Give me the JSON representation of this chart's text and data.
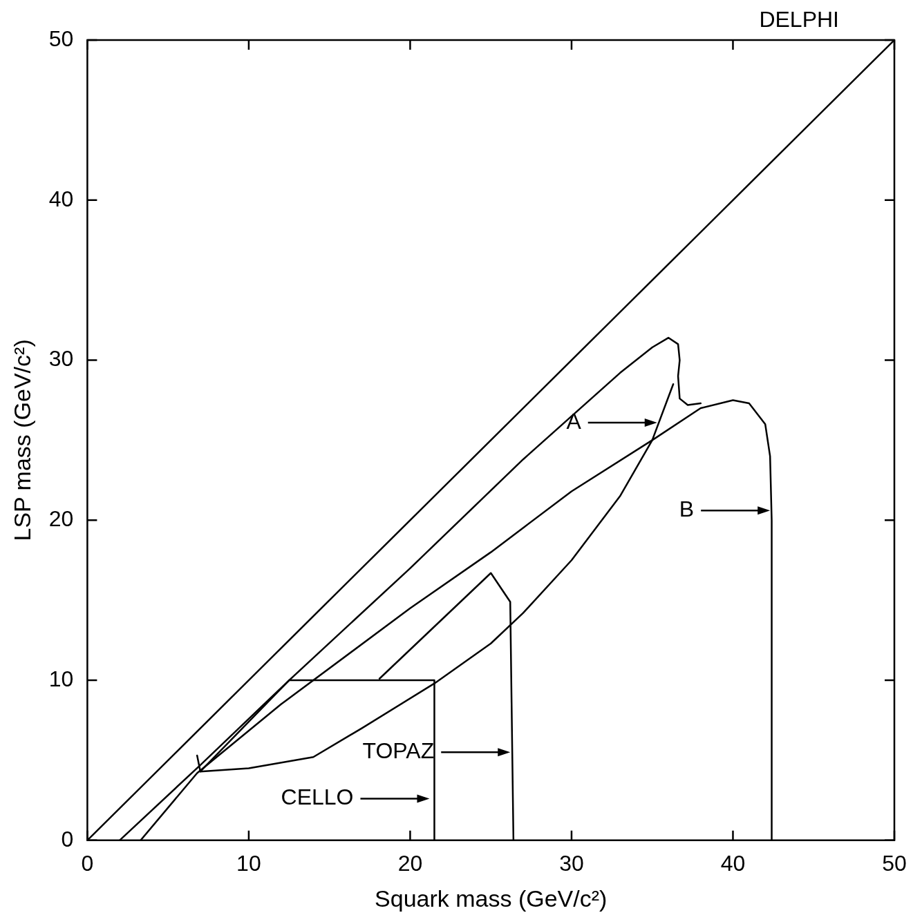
{
  "chart_data": {
    "type": "line",
    "xlabel": "Squark mass (GeV/c²)",
    "ylabel": "LSP mass (GeV/c²)",
    "xlim": [
      0,
      50
    ],
    "ylim": [
      0,
      50
    ],
    "xticks": [
      0,
      10,
      20,
      30,
      40,
      50
    ],
    "yticks": [
      0,
      10,
      20,
      30,
      40,
      50
    ],
    "series": [
      {
        "color": "#000000",
        "x": [
          0,
          50
        ],
        "values": [
          0,
          50
        ]
      },
      {
        "color": "#000000",
        "x": [
          2.0,
          7.0,
          12.5,
          20,
          27,
          33,
          35,
          36,
          36.6,
          36.7,
          36.6,
          36.7,
          37.2,
          38
        ],
        "values": [
          0,
          4.7,
          10,
          17,
          23.8,
          29.2,
          30.8,
          31.4,
          31,
          30,
          29,
          27.6,
          27.2,
          27.3
        ]
      },
      {
        "color": "#000000",
        "x": [
          7.0,
          10,
          14,
          17,
          21.5,
          25,
          27,
          30,
          33,
          35,
          36.3
        ],
        "values": [
          4.3,
          4.5,
          5.2,
          7,
          9.8,
          12.3,
          14.2,
          17.5,
          21.5,
          25,
          28.5
        ]
      },
      {
        "color": "#000000",
        "x": [
          6.8,
          7.0,
          12.5
        ],
        "values": [
          5.3,
          4.3,
          10
        ]
      },
      {
        "color": "#000000",
        "x": [
          3.3,
          6.8,
          12,
          20,
          25,
          30,
          35,
          38,
          40,
          41,
          42,
          42.3,
          42.4,
          42.4
        ],
        "values": [
          0,
          4.2,
          8.5,
          14.5,
          18,
          21.8,
          25,
          27,
          27.5,
          27.3,
          26,
          24,
          20,
          0
        ]
      },
      {
        "color": "#000000",
        "x": [
          18.1,
          25,
          26.2,
          26.4
        ],
        "values": [
          10.1,
          16.7,
          14.9,
          0
        ]
      },
      {
        "color": "#000000",
        "x": [
          12.5,
          21.5,
          21.5
        ],
        "values": [
          10,
          10,
          0
        ]
      }
    ],
    "annotations": [
      "DELPHI",
      "A",
      "B",
      "TOPAZ",
      "CELLO"
    ]
  }
}
